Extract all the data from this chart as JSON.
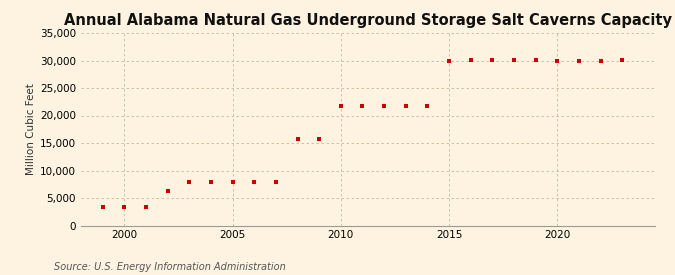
{
  "title": "Annual Alabama Natural Gas Underground Storage Salt Caverns Capacity",
  "ylabel": "Million Cubic Feet",
  "source": "Source: U.S. Energy Information Administration",
  "background_color": "#fdf3e0",
  "plot_bg_color": "#fdf3e0",
  "marker_color": "#cc0000",
  "grid_color": "#c8b89a",
  "years": [
    1999,
    2000,
    2001,
    2002,
    2003,
    2004,
    2005,
    2006,
    2007,
    2008,
    2009,
    2010,
    2011,
    2012,
    2013,
    2014,
    2015,
    2016,
    2017,
    2018,
    2019,
    2020,
    2021,
    2022,
    2023
  ],
  "values": [
    3300,
    3300,
    3300,
    6200,
    8000,
    8000,
    8000,
    8000,
    8000,
    15800,
    15800,
    21700,
    21700,
    21700,
    21700,
    21700,
    30000,
    30100,
    30100,
    30100,
    30100,
    30000,
    30000,
    30000,
    30100
  ],
  "xlim": [
    1998.0,
    2024.5
  ],
  "ylim": [
    0,
    35000
  ],
  "yticks": [
    0,
    5000,
    10000,
    15000,
    20000,
    25000,
    30000,
    35000
  ],
  "xticks": [
    2000,
    2005,
    2010,
    2015,
    2020
  ],
  "title_fontsize": 10.5,
  "label_fontsize": 7.5,
  "tick_fontsize": 7.5,
  "source_fontsize": 7.0,
  "marker_size": 12
}
